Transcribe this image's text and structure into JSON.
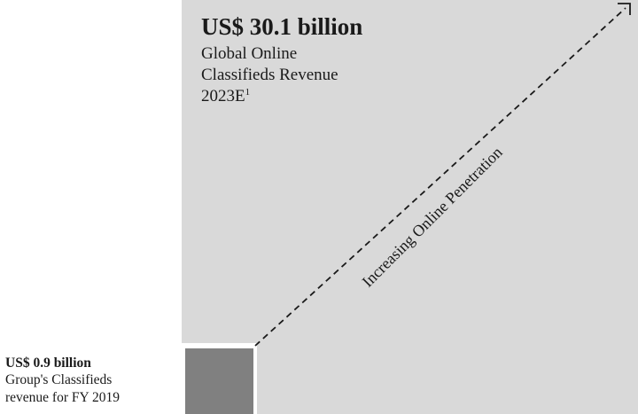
{
  "global_market": {
    "amount": "US$ 30.1 billion",
    "line1": "Global Online",
    "line2": "Classifieds Revenue",
    "line3": "2023E",
    "footnote": "1"
  },
  "group_revenue": {
    "amount": "US$ 0.9 billion",
    "line1": "Group's Classifieds",
    "line2": "revenue for FY 2019"
  },
  "arrow": {
    "label": "Increasing Online Penetration"
  },
  "colors": {
    "large_square": "#d9d9d9",
    "small_square": "#808080",
    "arrow": "#1a1a1a"
  }
}
